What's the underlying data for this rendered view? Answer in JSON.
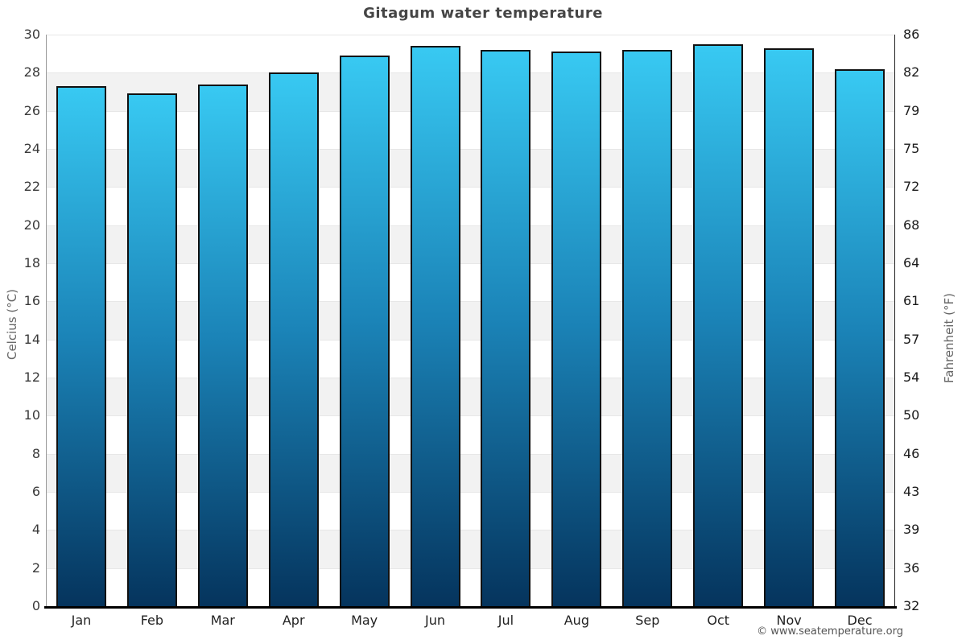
{
  "page": {
    "title": "Gitagum water temperature"
  },
  "footer": {
    "credit": "© www.seatemperature.org"
  },
  "chart_data": {
    "type": "bar",
    "title": "Gitagum water temperature",
    "categories": [
      "Jan",
      "Feb",
      "Mar",
      "Apr",
      "May",
      "Jun",
      "Jul",
      "Aug",
      "Sep",
      "Oct",
      "Nov",
      "Dec"
    ],
    "values": [
      27.3,
      26.9,
      27.4,
      28.0,
      28.9,
      29.4,
      29.2,
      29.1,
      29.2,
      29.5,
      29.3,
      28.2
    ],
    "value_unit": "°C",
    "xlabel": "",
    "ylabel_left": "Celcius (°C)",
    "ylabel_right": "Fahrenheit (°F)",
    "ylim": [
      0,
      30
    ],
    "yticks": [
      {
        "c": "0",
        "f": "32"
      },
      {
        "c": "2",
        "f": "36"
      },
      {
        "c": "4",
        "f": "39"
      },
      {
        "c": "6",
        "f": "43"
      },
      {
        "c": "8",
        "f": "46"
      },
      {
        "c": "10",
        "f": "50"
      },
      {
        "c": "12",
        "f": "54"
      },
      {
        "c": "14",
        "f": "57"
      },
      {
        "c": "16",
        "f": "61"
      },
      {
        "c": "18",
        "f": "64"
      },
      {
        "c": "20",
        "f": "68"
      },
      {
        "c": "22",
        "f": "72"
      },
      {
        "c": "24",
        "f": "75"
      },
      {
        "c": "26",
        "f": "79"
      },
      {
        "c": "28",
        "f": "82"
      },
      {
        "c": "30",
        "f": "86"
      }
    ],
    "grid": "alternating-horizontal-bands",
    "legend": null,
    "colors": {
      "bar_top": "#38c9f2",
      "bar_mid": "#1b84b8",
      "bar_bottom": "#05345d",
      "bar_border": "#111111",
      "band_light": "#ffffff",
      "band_dark": "#f2f2f2",
      "grid_line": "#e7e7e7",
      "axis_left": "#999999",
      "axis_right": "#222222",
      "baseline": "#000000"
    }
  }
}
